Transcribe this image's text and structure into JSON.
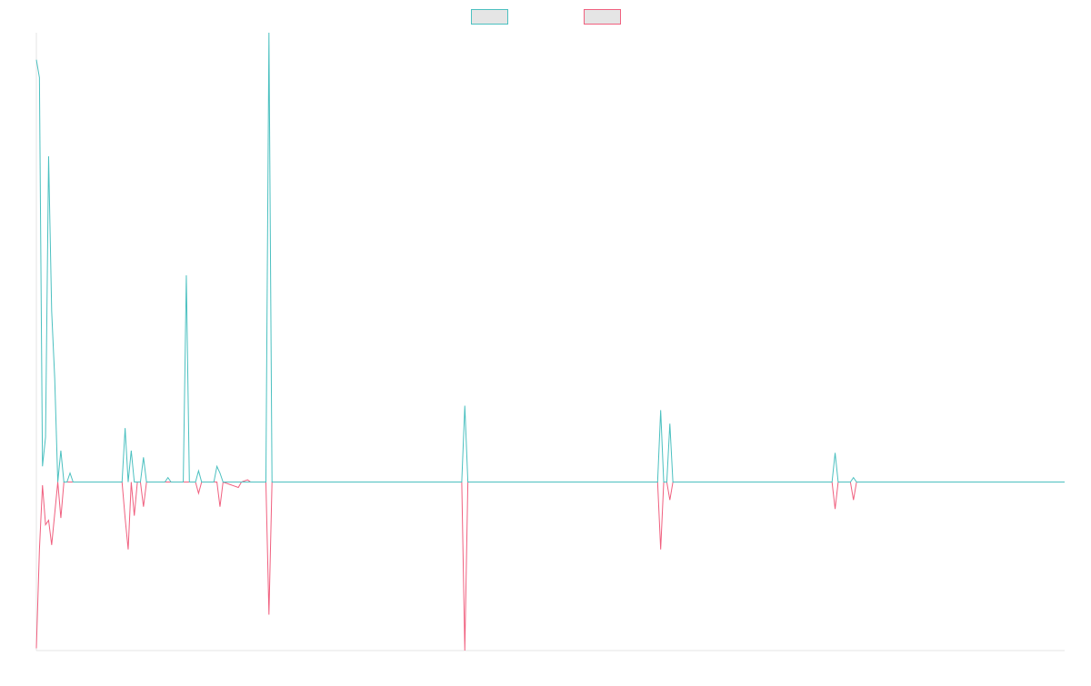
{
  "chart_data": {
    "type": "line",
    "title": "",
    "xlabel": "",
    "ylabel": "",
    "x_count": 337,
    "ylim": [
      -37.5,
      100
    ],
    "legend": {
      "position": "top-center",
      "entries": [
        {
          "name": "",
          "border_color": "#4bc0c0",
          "fill_color": "#e5e5e5"
        },
        {
          "name": "",
          "border_color": "#f0607f",
          "fill_color": "#e5e5e5"
        }
      ]
    },
    "series": [
      {
        "name": "",
        "color": "#4bc0c0",
        "points": [
          [
            0,
            94
          ],
          [
            1,
            90
          ],
          [
            2,
            3.5
          ],
          [
            3,
            10
          ],
          [
            4,
            72.5
          ],
          [
            5,
            38
          ],
          [
            6,
            23
          ],
          [
            7,
            0
          ],
          [
            8,
            7
          ],
          [
            9,
            0
          ],
          [
            10,
            0
          ],
          [
            11,
            2
          ],
          [
            12,
            0
          ],
          [
            28,
            0
          ],
          [
            29,
            12
          ],
          [
            30,
            0
          ],
          [
            31,
            7
          ],
          [
            32,
            0
          ],
          [
            33,
            0
          ],
          [
            34,
            0
          ],
          [
            35,
            5.5
          ],
          [
            36,
            0
          ],
          [
            37,
            0
          ],
          [
            38,
            0
          ],
          [
            39,
            0
          ],
          [
            40,
            0
          ],
          [
            41,
            0
          ],
          [
            42,
            0
          ],
          [
            43,
            1
          ],
          [
            44,
            0
          ],
          [
            48,
            0
          ],
          [
            49,
            46
          ],
          [
            50,
            0
          ],
          [
            52,
            0
          ],
          [
            53,
            2.5
          ],
          [
            54,
            0
          ],
          [
            58,
            0
          ],
          [
            59,
            3.5
          ],
          [
            60,
            2
          ],
          [
            61,
            0
          ],
          [
            75,
            0
          ],
          [
            76,
            100
          ],
          [
            77,
            0
          ],
          [
            88,
            0
          ],
          [
            89,
            0
          ],
          [
            90,
            0
          ],
          [
            91,
            0
          ],
          [
            96,
            0
          ],
          [
            97,
            0
          ],
          [
            98,
            0
          ],
          [
            139,
            0
          ],
          [
            140,
            17
          ],
          [
            141,
            0
          ],
          [
            203,
            0
          ],
          [
            204,
            16
          ],
          [
            205,
            0
          ],
          [
            206,
            0
          ],
          [
            207,
            13
          ],
          [
            208,
            0
          ],
          [
            260,
            0
          ],
          [
            261,
            6.5
          ],
          [
            262,
            0
          ],
          [
            266,
            0
          ],
          [
            267,
            1
          ],
          [
            268,
            0
          ],
          [
            336,
            0
          ]
        ]
      },
      {
        "name": "",
        "color": "#f0607f",
        "points": [
          [
            0,
            -37
          ],
          [
            1,
            -15
          ],
          [
            2,
            -0.7
          ],
          [
            3,
            -9.5
          ],
          [
            4,
            -8.5
          ],
          [
            5,
            -14
          ],
          [
            6,
            -7
          ],
          [
            7,
            0
          ],
          [
            8,
            -8
          ],
          [
            9,
            0
          ],
          [
            10,
            0
          ],
          [
            11,
            0
          ],
          [
            12,
            0
          ],
          [
            28,
            0
          ],
          [
            29,
            -8
          ],
          [
            30,
            -15
          ],
          [
            31,
            0
          ],
          [
            32,
            -7.5
          ],
          [
            33,
            0
          ],
          [
            34,
            0
          ],
          [
            35,
            -5.5
          ],
          [
            36,
            0
          ],
          [
            37,
            0
          ],
          [
            38,
            0
          ],
          [
            39,
            0
          ],
          [
            40,
            0
          ],
          [
            41,
            0
          ],
          [
            42,
            0
          ],
          [
            43,
            0
          ],
          [
            44,
            0
          ],
          [
            48,
            0
          ],
          [
            49,
            0
          ],
          [
            50,
            0
          ],
          [
            52,
            0
          ],
          [
            53,
            -2.5
          ],
          [
            54,
            0
          ],
          [
            58,
            0
          ],
          [
            59,
            0
          ],
          [
            60,
            -5.5
          ],
          [
            61,
            0
          ],
          [
            66,
            -1.2
          ],
          [
            67,
            0
          ],
          [
            69,
            0.5
          ],
          [
            70,
            0
          ],
          [
            75,
            0
          ],
          [
            76,
            -29.5
          ],
          [
            77,
            0
          ],
          [
            88,
            0
          ],
          [
            89,
            0
          ],
          [
            90,
            0
          ],
          [
            91,
            0
          ],
          [
            96,
            0
          ],
          [
            97,
            0
          ],
          [
            98,
            0
          ],
          [
            139,
            0
          ],
          [
            140,
            -37.5
          ],
          [
            141,
            0
          ],
          [
            203,
            0
          ],
          [
            204,
            -15
          ],
          [
            205,
            0
          ],
          [
            206,
            0
          ],
          [
            207,
            -4
          ],
          [
            208,
            0
          ],
          [
            260,
            0
          ],
          [
            261,
            -6
          ],
          [
            262,
            0
          ],
          [
            266,
            0
          ],
          [
            267,
            -4
          ],
          [
            268,
            0
          ],
          [
            336,
            0
          ]
        ]
      }
    ]
  }
}
